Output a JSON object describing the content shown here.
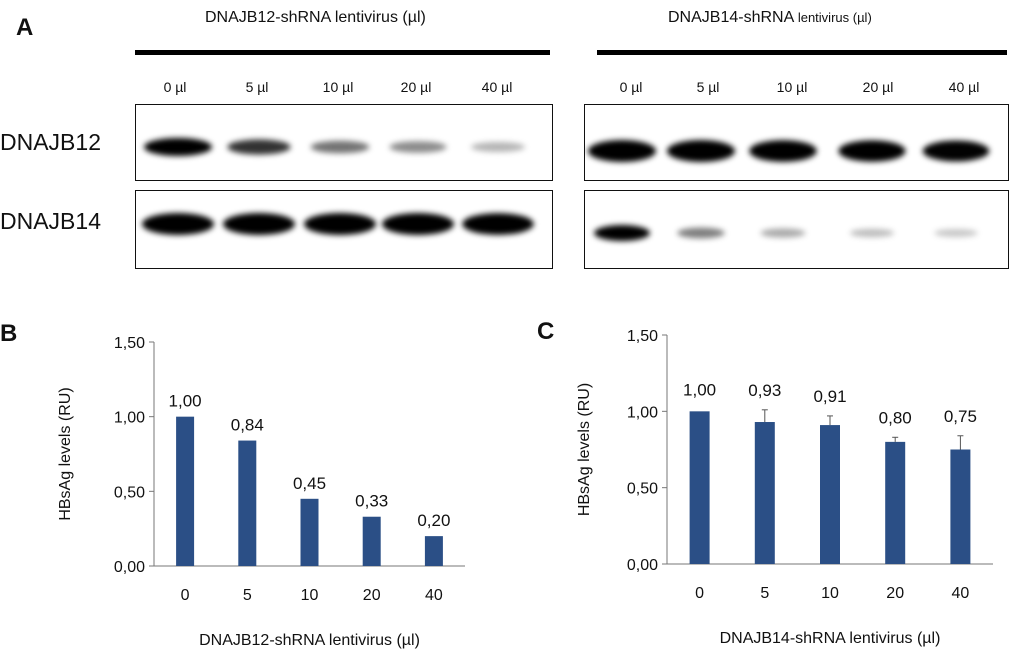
{
  "blot": {
    "panel_label": "A",
    "groups": [
      {
        "title": "DNAJB12-shRNA lentivirus (µl)",
        "title_main": "DNAJB12-shRNA lentivirus (µl)",
        "title_small": "",
        "lanes": [
          "0 µl",
          "5 µl",
          "10 µl",
          "20 µl",
          "40 µl"
        ],
        "dnajb12_band_intensity": [
          1.0,
          0.72,
          0.45,
          0.35,
          0.18
        ],
        "dnajb14_band_intensity": [
          1.0,
          1.0,
          1.0,
          1.0,
          0.98
        ]
      },
      {
        "title": "DNAJB14-shRNA lentivirus (µl)",
        "title_main": "DNAJB14-shRNA ",
        "title_small": "lentivirus (µl)",
        "lanes": [
          "0 µl",
          "5 µl",
          "10 µl",
          "20 µl",
          "40 µl"
        ],
        "dnajb12_band_intensity": [
          1.0,
          1.0,
          0.98,
          0.95,
          0.92
        ],
        "dnajb14_band_intensity": [
          1.0,
          0.4,
          0.22,
          0.14,
          0.1
        ]
      }
    ],
    "rows": [
      "DNAJB12",
      "DNAJB14"
    ],
    "band_color": "#000000"
  },
  "chart_data": [
    {
      "panel_label": "B",
      "type": "bar",
      "categories": [
        "0",
        "5",
        "10",
        "20",
        "40"
      ],
      "values": [
        1.0,
        0.84,
        0.45,
        0.33,
        0.2
      ],
      "value_labels": [
        "1,00",
        "0,84",
        "0,45",
        "0,33",
        "0,20"
      ],
      "error": [
        0,
        0,
        0,
        0,
        0
      ],
      "xlabel": "DNAJB12-shRNA lentivirus (µl)",
      "ylabel": "HBsAg levels (RU)",
      "ylim": [
        0,
        1.5
      ],
      "yticks": [
        0,
        0.5,
        1.0,
        1.5
      ],
      "ytick_labels": [
        "0,00",
        "0,50",
        "1,00",
        "1,50"
      ],
      "color": "#2b4f86"
    },
    {
      "panel_label": "C",
      "type": "bar",
      "categories": [
        "0",
        "5",
        "10",
        "20",
        "40"
      ],
      "values": [
        1.0,
        0.93,
        0.91,
        0.8,
        0.75
      ],
      "value_labels": [
        "1,00",
        "0,93",
        "0,91",
        "0,80",
        "0,75"
      ],
      "error": [
        0,
        0.08,
        0.06,
        0.03,
        0.09
      ],
      "xlabel": "DNAJB14-shRNA lentivirus (µl)",
      "ylabel": "HBsAg levels (RU)",
      "ylim": [
        0,
        1.5
      ],
      "yticks": [
        0,
        0.5,
        1.0,
        1.5
      ],
      "ytick_labels": [
        "0,00",
        "0,50",
        "1,00",
        "1,50"
      ],
      "color": "#2b4f86"
    }
  ]
}
